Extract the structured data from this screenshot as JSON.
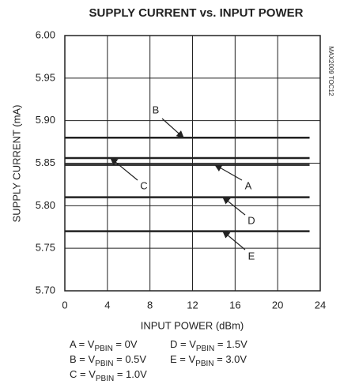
{
  "chart_data": {
    "type": "line",
    "title": "SUPPLY CURRENT vs. INPUT POWER",
    "x_label": "INPUT POWER (dBm)",
    "y_label": "SUPPLY CURRENT (mA)",
    "side_note": "MAX2009 TOC12",
    "x": [
      0,
      23
    ],
    "series": [
      {
        "name": "A",
        "color": "#222222",
        "values": [
          5.848,
          5.848
        ]
      },
      {
        "name": "B",
        "color": "#222222",
        "values": [
          5.88,
          5.88
        ]
      },
      {
        "name": "C",
        "color": "#222222",
        "values": [
          5.856,
          5.856
        ]
      },
      {
        "name": "D",
        "color": "#222222",
        "values": [
          5.81,
          5.81
        ]
      },
      {
        "name": "E",
        "color": "#222222",
        "values": [
          5.77,
          5.77
        ]
      }
    ],
    "legend_text": [
      {
        "prefix": "A = V",
        "sub": "PBIN",
        "suffix": " = 0V"
      },
      {
        "prefix": "D = V",
        "sub": "PBIN",
        "suffix": " = 1.5V"
      },
      {
        "prefix": "B = V",
        "sub": "PBIN",
        "suffix": " = 0.5V"
      },
      {
        "prefix": "E = V",
        "sub": "PBIN",
        "suffix": " = 3.0V"
      },
      {
        "prefix": "C = V",
        "sub": "PBIN",
        "suffix": " = 1.0V"
      }
    ],
    "xlim": [
      0,
      24
    ],
    "xticks": [
      0,
      4,
      8,
      12,
      16,
      20,
      24
    ],
    "ylim": [
      5.7,
      6.0
    ],
    "yticks": [
      {
        "value": 5.7,
        "label": "5.70"
      },
      {
        "value": 5.75,
        "label": "5.75"
      },
      {
        "value": 5.8,
        "label": "5.80"
      },
      {
        "value": 5.85,
        "label": "5.85"
      },
      {
        "value": 5.9,
        "label": "5.90"
      },
      {
        "value": 5.95,
        "label": "5.95"
      },
      {
        "value": 6.0,
        "label": "6.00"
      }
    ],
    "grid": true
  }
}
